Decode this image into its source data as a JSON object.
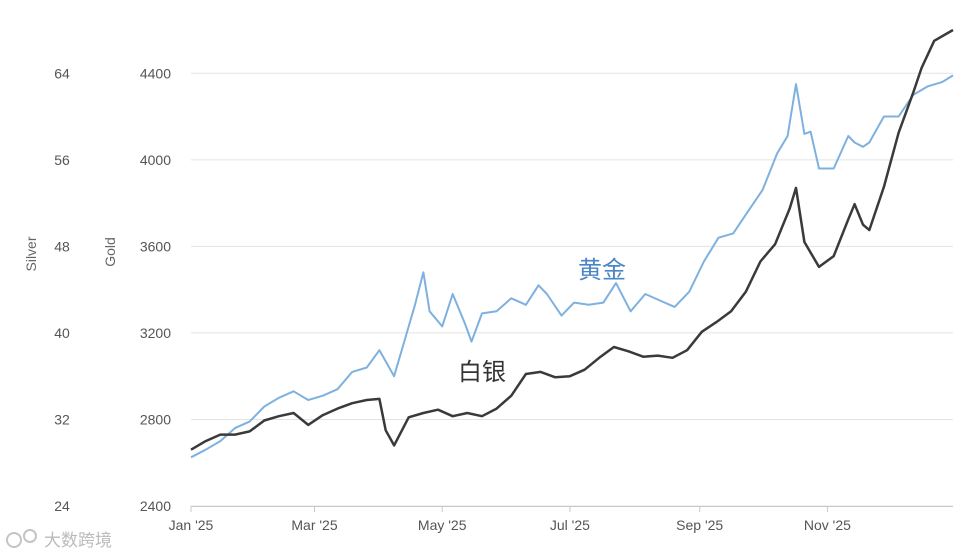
{
  "chart_data": {
    "type": "line",
    "title": "",
    "x_ticks": [
      "Jan '25",
      "Mar '25",
      "May '25",
      "Jul '25",
      "Sep '25",
      "Nov '25"
    ],
    "y_left_outer": {
      "label": "Silver",
      "ticks": [
        24,
        32,
        40,
        48,
        56,
        64
      ],
      "range": [
        24,
        68
      ]
    },
    "y_left_inner": {
      "label": "Gold",
      "ticks": [
        2400,
        2800,
        3200,
        3600,
        4000,
        4400
      ],
      "range": [
        2400,
        4600
      ]
    },
    "grid": true,
    "series": [
      {
        "name": "黄金",
        "axis": "gold",
        "color": "#7eb1e0",
        "points": [
          [
            "2025-01-01",
            2625
          ],
          [
            "2025-01-08",
            2660
          ],
          [
            "2025-01-15",
            2700
          ],
          [
            "2025-01-22",
            2760
          ],
          [
            "2025-01-29",
            2790
          ],
          [
            "2025-02-05",
            2860
          ],
          [
            "2025-02-12",
            2900
          ],
          [
            "2025-02-19",
            2930
          ],
          [
            "2025-02-26",
            2890
          ],
          [
            "2025-03-05",
            2910
          ],
          [
            "2025-03-12",
            2940
          ],
          [
            "2025-03-19",
            3020
          ],
          [
            "2025-03-26",
            3040
          ],
          [
            "2025-04-01",
            3120
          ],
          [
            "2025-04-08",
            3000
          ],
          [
            "2025-04-15",
            3230
          ],
          [
            "2025-04-18",
            3330
          ],
          [
            "2025-04-22",
            3480
          ],
          [
            "2025-04-25",
            3300
          ],
          [
            "2025-05-01",
            3230
          ],
          [
            "2025-05-06",
            3380
          ],
          [
            "2025-05-12",
            3240
          ],
          [
            "2025-05-15",
            3160
          ],
          [
            "2025-05-20",
            3290
          ],
          [
            "2025-05-27",
            3300
          ],
          [
            "2025-06-03",
            3360
          ],
          [
            "2025-06-10",
            3330
          ],
          [
            "2025-06-16",
            3420
          ],
          [
            "2025-06-20",
            3380
          ],
          [
            "2025-06-27",
            3280
          ],
          [
            "2025-07-03",
            3340
          ],
          [
            "2025-07-10",
            3330
          ],
          [
            "2025-07-17",
            3340
          ],
          [
            "2025-07-23",
            3430
          ],
          [
            "2025-07-30",
            3300
          ],
          [
            "2025-08-06",
            3380
          ],
          [
            "2025-08-13",
            3350
          ],
          [
            "2025-08-20",
            3320
          ],
          [
            "2025-08-27",
            3390
          ],
          [
            "2025-09-03",
            3530
          ],
          [
            "2025-09-10",
            3640
          ],
          [
            "2025-09-17",
            3660
          ],
          [
            "2025-09-24",
            3760
          ],
          [
            "2025-10-01",
            3860
          ],
          [
            "2025-10-08",
            4030
          ],
          [
            "2025-10-13",
            4110
          ],
          [
            "2025-10-17",
            4350
          ],
          [
            "2025-10-21",
            4120
          ],
          [
            "2025-10-24",
            4130
          ],
          [
            "2025-10-28",
            3960
          ],
          [
            "2025-11-04",
            3960
          ],
          [
            "2025-11-11",
            4110
          ],
          [
            "2025-11-14",
            4080
          ],
          [
            "2025-11-18",
            4060
          ],
          [
            "2025-11-21",
            4080
          ],
          [
            "2025-11-28",
            4200
          ],
          [
            "2025-12-05",
            4200
          ],
          [
            "2025-12-12",
            4300
          ],
          [
            "2025-12-19",
            4340
          ],
          [
            "2025-12-26",
            4360
          ],
          [
            "2025-12-31",
            4390
          ]
        ]
      },
      {
        "name": "白银",
        "axis": "silver",
        "color": "#3a3a3a",
        "points": [
          [
            "2025-01-01",
            29.2
          ],
          [
            "2025-01-08",
            30.0
          ],
          [
            "2025-01-15",
            30.6
          ],
          [
            "2025-01-22",
            30.6
          ],
          [
            "2025-01-29",
            30.9
          ],
          [
            "2025-02-05",
            31.9
          ],
          [
            "2025-02-12",
            32.3
          ],
          [
            "2025-02-19",
            32.6
          ],
          [
            "2025-02-26",
            31.5
          ],
          [
            "2025-03-05",
            32.4
          ],
          [
            "2025-03-12",
            33.0
          ],
          [
            "2025-03-19",
            33.5
          ],
          [
            "2025-03-26",
            33.8
          ],
          [
            "2025-04-01",
            33.9
          ],
          [
            "2025-04-04",
            31.0
          ],
          [
            "2025-04-08",
            29.6
          ],
          [
            "2025-04-15",
            32.2
          ],
          [
            "2025-04-22",
            32.6
          ],
          [
            "2025-04-29",
            32.9
          ],
          [
            "2025-05-06",
            32.3
          ],
          [
            "2025-05-13",
            32.6
          ],
          [
            "2025-05-20",
            32.3
          ],
          [
            "2025-05-27",
            33.0
          ],
          [
            "2025-06-03",
            34.2
          ],
          [
            "2025-06-10",
            36.2
          ],
          [
            "2025-06-17",
            36.4
          ],
          [
            "2025-06-24",
            35.9
          ],
          [
            "2025-07-01",
            36.0
          ],
          [
            "2025-07-08",
            36.6
          ],
          [
            "2025-07-15",
            37.7
          ],
          [
            "2025-07-22",
            38.7
          ],
          [
            "2025-07-29",
            38.3
          ],
          [
            "2025-08-05",
            37.8
          ],
          [
            "2025-08-12",
            37.9
          ],
          [
            "2025-08-19",
            37.7
          ],
          [
            "2025-08-26",
            38.4
          ],
          [
            "2025-09-02",
            40.1
          ],
          [
            "2025-09-09",
            41.0
          ],
          [
            "2025-09-16",
            42.0
          ],
          [
            "2025-09-23",
            43.8
          ],
          [
            "2025-09-30",
            46.6
          ],
          [
            "2025-10-07",
            48.2
          ],
          [
            "2025-10-14",
            51.5
          ],
          [
            "2025-10-17",
            53.4
          ],
          [
            "2025-10-21",
            48.4
          ],
          [
            "2025-10-28",
            46.1
          ],
          [
            "2025-11-04",
            47.1
          ],
          [
            "2025-11-11",
            50.5
          ],
          [
            "2025-11-14",
            51.9
          ],
          [
            "2025-11-18",
            50.0
          ],
          [
            "2025-11-21",
            49.5
          ],
          [
            "2025-11-28",
            53.5
          ],
          [
            "2025-12-05",
            58.5
          ],
          [
            "2025-12-12",
            62.2
          ],
          [
            "2025-12-16",
            64.5
          ],
          [
            "2025-12-22",
            67.0
          ],
          [
            "2025-12-31",
            68.0
          ]
        ]
      }
    ],
    "labels": {
      "gold": "黄金",
      "silver": "白银"
    }
  },
  "watermark": "大数跨境"
}
